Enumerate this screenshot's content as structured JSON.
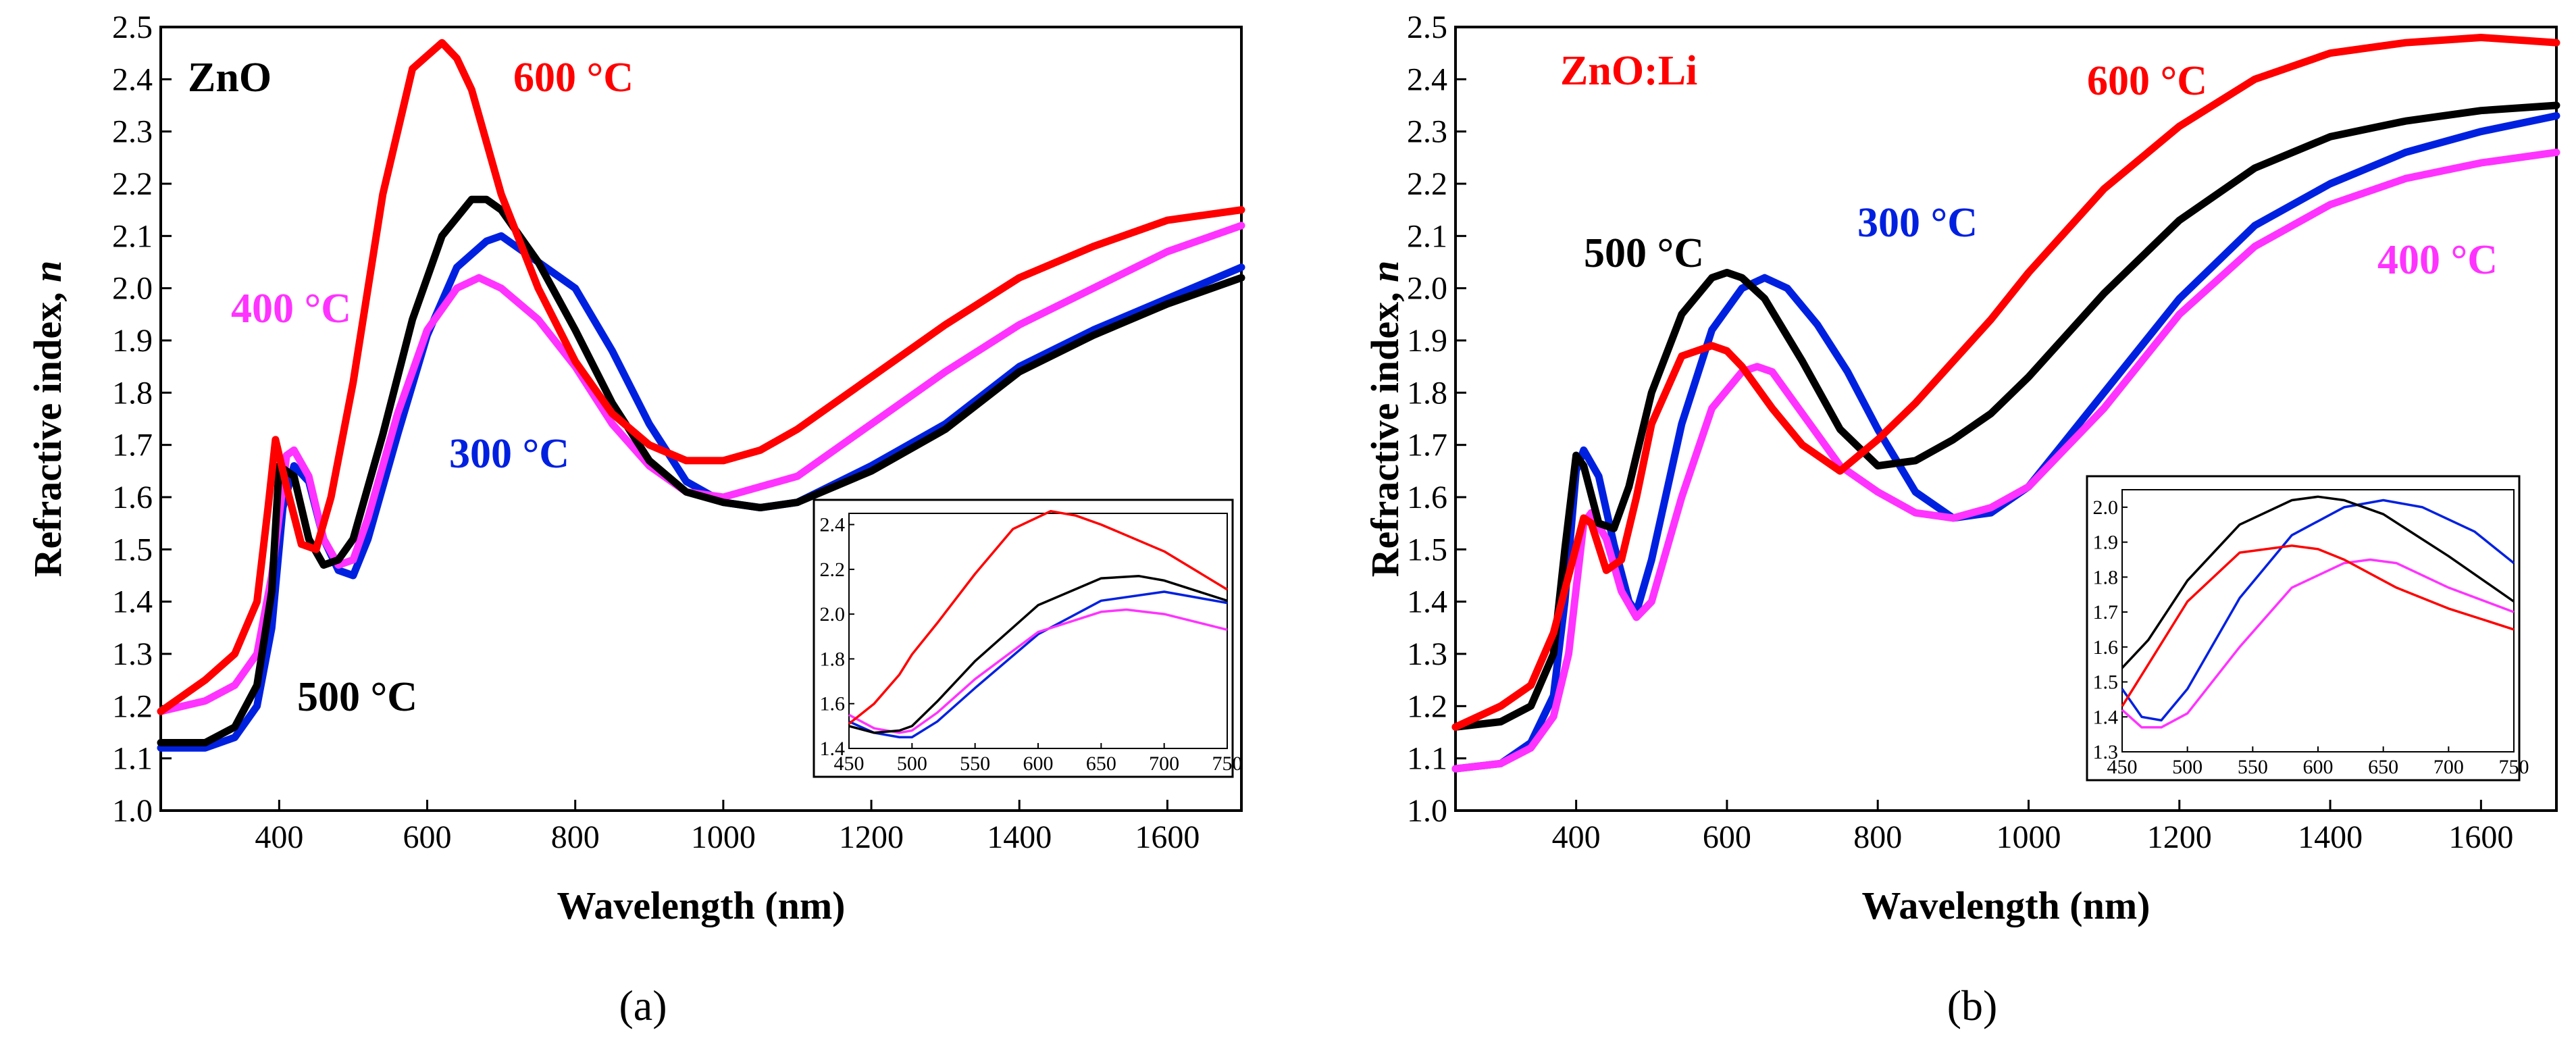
{
  "chart_data": [
    {
      "type": "line",
      "panel_label": "(a)",
      "title": "ZnO",
      "xlabel": "Wavelength (nm)",
      "ylabel_main": "Refractive index, ",
      "ylabel_symbol": "n",
      "xlim": [
        240,
        1700
      ],
      "ylim": [
        1.0,
        2.5
      ],
      "xticks": [
        400,
        600,
        800,
        1000,
        1200,
        1400,
        1600
      ],
      "yticks": [
        1.0,
        1.1,
        1.2,
        1.3,
        1.4,
        1.5,
        1.6,
        1.7,
        1.8,
        1.9,
        2.0,
        2.1,
        2.2,
        2.3,
        2.4,
        2.5
      ],
      "ytick_labels": [
        "1.0",
        "1.1",
        "1.2",
        "1.3",
        "1.4",
        "1.5",
        "1.6",
        "1.7",
        "1.8",
        "1.9",
        "2.0",
        "2.1",
        "2.2",
        "2.3",
        "2.4",
        "2.5"
      ],
      "series": [
        {
          "name": "300 °C",
          "color": "#0020e0",
          "x": [
            240,
            300,
            340,
            370,
            390,
            405,
            420,
            440,
            460,
            480,
            500,
            520,
            560,
            600,
            640,
            680,
            700,
            720,
            760,
            800,
            850,
            900,
            950,
            1000,
            1050,
            1100,
            1200,
            1300,
            1400,
            1500,
            1600,
            1700
          ],
          "y": [
            1.12,
            1.12,
            1.14,
            1.2,
            1.35,
            1.58,
            1.66,
            1.63,
            1.52,
            1.46,
            1.45,
            1.52,
            1.72,
            1.91,
            2.04,
            2.09,
            2.1,
            2.08,
            2.04,
            2.0,
            1.88,
            1.74,
            1.63,
            1.59,
            1.58,
            1.59,
            1.66,
            1.74,
            1.85,
            1.92,
            1.98,
            2.04
          ]
        },
        {
          "name": "400 °C",
          "color": "#ff33ff",
          "x": [
            240,
            300,
            340,
            370,
            390,
            410,
            420,
            440,
            460,
            480,
            500,
            520,
            560,
            600,
            640,
            670,
            700,
            750,
            800,
            850,
            900,
            950,
            1000,
            1100,
            1200,
            1300,
            1400,
            1500,
            1600,
            1700
          ],
          "y": [
            1.19,
            1.21,
            1.24,
            1.3,
            1.45,
            1.68,
            1.69,
            1.64,
            1.52,
            1.47,
            1.48,
            1.56,
            1.76,
            1.92,
            2.0,
            2.02,
            2.0,
            1.94,
            1.85,
            1.74,
            1.66,
            1.61,
            1.6,
            1.64,
            1.74,
            1.84,
            1.93,
            2.0,
            2.07,
            2.12
          ]
        },
        {
          "name": "500 °C",
          "color": "#000000",
          "x": [
            240,
            300,
            340,
            370,
            390,
            400,
            420,
            440,
            460,
            480,
            500,
            540,
            580,
            620,
            660,
            680,
            700,
            750,
            800,
            850,
            900,
            950,
            1000,
            1050,
            1100,
            1200,
            1300,
            1400,
            1500,
            1600,
            1700
          ],
          "y": [
            1.13,
            1.13,
            1.16,
            1.24,
            1.42,
            1.66,
            1.64,
            1.52,
            1.47,
            1.48,
            1.52,
            1.72,
            1.94,
            2.1,
            2.17,
            2.17,
            2.15,
            2.05,
            1.92,
            1.78,
            1.67,
            1.61,
            1.59,
            1.58,
            1.59,
            1.65,
            1.73,
            1.84,
            1.91,
            1.97,
            2.02
          ]
        },
        {
          "name": "600 °C",
          "color": "#ff0000",
          "x": [
            240,
            300,
            340,
            370,
            385,
            395,
            410,
            430,
            450,
            470,
            500,
            540,
            580,
            620,
            640,
            660,
            700,
            750,
            800,
            850,
            900,
            950,
            1000,
            1050,
            1100,
            1200,
            1300,
            1400,
            1500,
            1600,
            1700
          ],
          "y": [
            1.19,
            1.25,
            1.3,
            1.4,
            1.58,
            1.71,
            1.62,
            1.51,
            1.5,
            1.6,
            1.82,
            2.18,
            2.42,
            2.47,
            2.44,
            2.38,
            2.18,
            2.0,
            1.86,
            1.76,
            1.7,
            1.67,
            1.67,
            1.69,
            1.73,
            1.83,
            1.93,
            2.02,
            2.08,
            2.13,
            2.15
          ]
        }
      ],
      "annotations": [
        {
          "text": "600 °C",
          "color": "#ff0000"
        },
        {
          "text": "400 °C",
          "color": "#ff33ff"
        },
        {
          "text": "300 °C",
          "color": "#0020e0"
        },
        {
          "text": "500 °C",
          "color": "#000000"
        }
      ],
      "inset": {
        "xlim": [
          450,
          750
        ],
        "ylim": [
          1.4,
          2.45
        ],
        "xticks": [
          450,
          500,
          550,
          600,
          650,
          700,
          750
        ],
        "yticks": [
          1.4,
          1.6,
          1.8,
          2.0,
          2.2,
          2.4
        ],
        "ytick_labels": [
          "1.4",
          "1.6",
          "1.8",
          "2.0",
          "2.2",
          "2.4"
        ],
        "series": [
          {
            "name": "300 °C",
            "color": "#0020e0",
            "x": [
              450,
              470,
              490,
              500,
              520,
              550,
              600,
              650,
              700,
              750
            ],
            "y": [
              1.52,
              1.47,
              1.45,
              1.45,
              1.52,
              1.67,
              1.91,
              2.06,
              2.1,
              2.05
            ]
          },
          {
            "name": "400 °C",
            "color": "#ff33ff",
            "x": [
              450,
              470,
              490,
              500,
              520,
              550,
              600,
              650,
              670,
              700,
              750
            ],
            "y": [
              1.55,
              1.49,
              1.47,
              1.48,
              1.56,
              1.71,
              1.92,
              2.01,
              2.02,
              2.0,
              1.93
            ]
          },
          {
            "name": "500 °C",
            "color": "#000000",
            "x": [
              450,
              470,
              490,
              500,
              520,
              550,
              600,
              650,
              680,
              700,
              750
            ],
            "y": [
              1.5,
              1.47,
              1.48,
              1.5,
              1.61,
              1.79,
              2.04,
              2.16,
              2.17,
              2.15,
              2.06
            ]
          },
          {
            "name": "600 °C",
            "color": "#ff0000",
            "x": [
              450,
              470,
              490,
              500,
              520,
              550,
              580,
              610,
              630,
              650,
              700,
              750
            ],
            "y": [
              1.51,
              1.6,
              1.73,
              1.82,
              1.96,
              2.18,
              2.38,
              2.46,
              2.44,
              2.4,
              2.28,
              2.11
            ]
          }
        ]
      }
    },
    {
      "type": "line",
      "panel_label": "(b)",
      "title": "ZnO:Li",
      "xlabel": "Wavelength (nm)",
      "ylabel_main": "Refractive index, ",
      "ylabel_symbol": "n",
      "xlim": [
        240,
        1700
      ],
      "ylim": [
        1.0,
        2.5
      ],
      "xticks": [
        400,
        600,
        800,
        1000,
        1200,
        1400,
        1600
      ],
      "yticks": [
        1.0,
        1.1,
        1.2,
        1.3,
        1.4,
        1.5,
        1.6,
        1.7,
        1.8,
        1.9,
        2.0,
        2.1,
        2.2,
        2.3,
        2.4,
        2.5
      ],
      "ytick_labels": [
        "1.0",
        "1.1",
        "1.2",
        "1.3",
        "1.4",
        "1.5",
        "1.6",
        "1.7",
        "1.8",
        "1.9",
        "2.0",
        "2.1",
        "2.2",
        "2.3",
        "2.4",
        "2.5"
      ],
      "series": [
        {
          "name": "300 °C",
          "color": "#0020e0",
          "x": [
            240,
            300,
            340,
            370,
            385,
            400,
            410,
            430,
            450,
            470,
            480,
            500,
            540,
            580,
            620,
            650,
            680,
            720,
            760,
            800,
            850,
            900,
            950,
            1000,
            1100,
            1200,
            1300,
            1400,
            1500,
            1600,
            1700
          ],
          "y": [
            1.08,
            1.09,
            1.13,
            1.22,
            1.4,
            1.65,
            1.69,
            1.64,
            1.51,
            1.4,
            1.38,
            1.48,
            1.74,
            1.92,
            2.0,
            2.02,
            2.0,
            1.93,
            1.84,
            1.73,
            1.61,
            1.56,
            1.57,
            1.62,
            1.8,
            1.98,
            2.12,
            2.2,
            2.26,
            2.3,
            2.33
          ]
        },
        {
          "name": "400 °C",
          "color": "#ff33ff",
          "x": [
            240,
            300,
            340,
            370,
            390,
            410,
            420,
            440,
            460,
            480,
            500,
            540,
            580,
            620,
            640,
            660,
            700,
            750,
            800,
            850,
            900,
            950,
            1000,
            1100,
            1200,
            1300,
            1400,
            1500,
            1600,
            1700
          ],
          "y": [
            1.08,
            1.09,
            1.12,
            1.18,
            1.3,
            1.55,
            1.57,
            1.52,
            1.42,
            1.37,
            1.4,
            1.6,
            1.77,
            1.84,
            1.85,
            1.84,
            1.76,
            1.66,
            1.61,
            1.57,
            1.56,
            1.58,
            1.62,
            1.77,
            1.95,
            2.08,
            2.16,
            2.21,
            2.24,
            2.26
          ]
        },
        {
          "name": "500 °C",
          "color": "#000000",
          "x": [
            240,
            300,
            340,
            370,
            385,
            400,
            410,
            430,
            450,
            470,
            500,
            540,
            580,
            600,
            620,
            650,
            700,
            750,
            800,
            850,
            900,
            950,
            1000,
            1100,
            1200,
            1300,
            1400,
            1500,
            1600,
            1700
          ],
          "y": [
            1.16,
            1.17,
            1.2,
            1.3,
            1.5,
            1.68,
            1.66,
            1.55,
            1.54,
            1.62,
            1.8,
            1.95,
            2.02,
            2.03,
            2.02,
            1.98,
            1.86,
            1.73,
            1.66,
            1.67,
            1.71,
            1.76,
            1.83,
            1.99,
            2.13,
            2.23,
            2.29,
            2.32,
            2.34,
            2.35
          ]
        },
        {
          "name": "600 °C",
          "color": "#ff0000",
          "x": [
            240,
            300,
            340,
            370,
            390,
            410,
            420,
            440,
            460,
            480,
            500,
            540,
            580,
            600,
            620,
            660,
            700,
            750,
            800,
            850,
            900,
            950,
            1000,
            1100,
            1200,
            1300,
            1400,
            1500,
            1600,
            1700
          ],
          "y": [
            1.16,
            1.2,
            1.24,
            1.34,
            1.45,
            1.56,
            1.55,
            1.46,
            1.48,
            1.6,
            1.74,
            1.87,
            1.89,
            1.88,
            1.85,
            1.77,
            1.7,
            1.65,
            1.71,
            1.78,
            1.86,
            1.94,
            2.03,
            2.19,
            2.31,
            2.4,
            2.45,
            2.47,
            2.48,
            2.47
          ]
        }
      ],
      "annotations": [
        {
          "text": "600 °C",
          "color": "#ff0000"
        },
        {
          "text": "500 °C",
          "color": "#000000"
        },
        {
          "text": "300 °C",
          "color": "#0020e0"
        },
        {
          "text": "400 °C",
          "color": "#ff33ff"
        }
      ],
      "inset": {
        "xlim": [
          450,
          750
        ],
        "ylim": [
          1.3,
          2.05
        ],
        "xticks": [
          450,
          500,
          550,
          600,
          650,
          700,
          750
        ],
        "yticks": [
          1.3,
          1.4,
          1.5,
          1.6,
          1.7,
          1.8,
          1.9,
          2.0
        ],
        "ytick_labels": [
          "1.3",
          "1.4",
          "1.5",
          "1.6",
          "1.7",
          "1.8",
          "1.9",
          "2.0"
        ],
        "series": [
          {
            "name": "300 °C",
            "color": "#0020e0",
            "x": [
              450,
              465,
              480,
              500,
              540,
              580,
              620,
              650,
              680,
              720,
              750
            ],
            "y": [
              1.48,
              1.4,
              1.39,
              1.48,
              1.74,
              1.92,
              2.0,
              2.02,
              2.0,
              1.93,
              1.84
            ]
          },
          {
            "name": "400 °C",
            "color": "#ff33ff",
            "x": [
              450,
              465,
              480,
              500,
              540,
              580,
              620,
              640,
              660,
              700,
              750
            ],
            "y": [
              1.42,
              1.37,
              1.37,
              1.41,
              1.6,
              1.77,
              1.84,
              1.85,
              1.84,
              1.77,
              1.7
            ]
          },
          {
            "name": "500 °C",
            "color": "#000000",
            "x": [
              450,
              470,
              500,
              540,
              580,
              600,
              620,
              650,
              700,
              750
            ],
            "y": [
              1.54,
              1.62,
              1.79,
              1.95,
              2.02,
              2.03,
              2.02,
              1.98,
              1.86,
              1.73
            ]
          },
          {
            "name": "600 °C",
            "color": "#ff0000",
            "x": [
              450,
              470,
              500,
              540,
              580,
              600,
              620,
              660,
              700,
              750
            ],
            "y": [
              1.43,
              1.55,
              1.73,
              1.87,
              1.89,
              1.88,
              1.85,
              1.77,
              1.71,
              1.65
            ]
          }
        ]
      }
    }
  ]
}
